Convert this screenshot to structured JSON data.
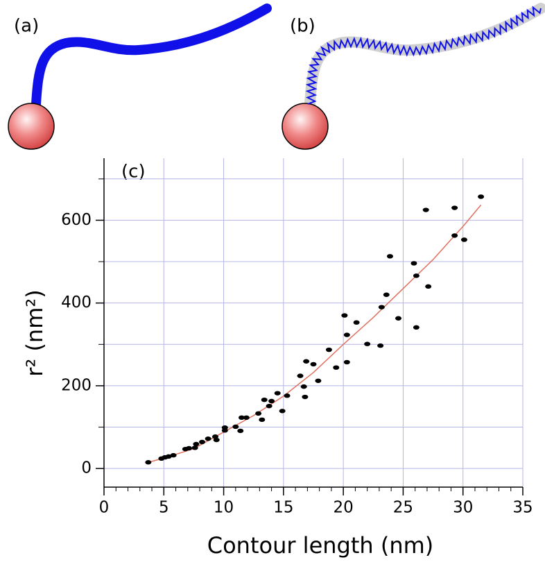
{
  "chart_data": {
    "type": "scatter",
    "panel_labels": [
      "(a)",
      "(b)",
      "(c)"
    ],
    "xlabel": "Contour length (nm)",
    "ylabel": "r² (nm²)",
    "xlim": [
      0,
      35
    ],
    "ylim": [
      -45,
      750
    ],
    "xticks": [
      0,
      5,
      10,
      15,
      20,
      25,
      30,
      35
    ],
    "yticks": [
      0,
      200,
      400,
      600
    ],
    "y_minor_ticks": [
      100,
      300,
      500,
      700
    ],
    "x_minor_step": 1,
    "grid": true,
    "grid_color": "#b4b4e6",
    "series": [
      {
        "color": "#000000",
        "x": [
          3.7,
          4.8,
          5.1,
          5.4,
          5.8,
          6.8,
          7.1,
          7.6,
          7.7,
          8.2,
          8.7,
          9.3,
          9.4,
          10.1,
          10.1,
          11.0,
          11.4,
          11.5,
          11.9,
          12.9,
          13.2,
          13.4,
          13.8,
          14.0,
          14.5,
          14.9,
          15.3,
          16.4,
          16.7,
          16.8,
          16.9,
          17.5,
          17.9,
          18.8,
          19.4,
          20.1,
          20.3,
          20.3,
          21.1,
          22.0,
          23.1,
          23.2,
          23.6,
          23.9,
          24.6,
          25.9,
          26.1,
          26.1,
          26.9,
          27.1,
          29.3,
          29.3,
          30.1,
          31.5
        ],
        "values": [
          15,
          24,
          27,
          29,
          32,
          47,
          49,
          50,
          59,
          64,
          72,
          77,
          69,
          99,
          92,
          101,
          91,
          123,
          123,
          133,
          118,
          166,
          151,
          163,
          182,
          139,
          176,
          224,
          198,
          173,
          259,
          252,
          212,
          287,
          244,
          370,
          323,
          257,
          353,
          301,
          297,
          390,
          420,
          513,
          363,
          496,
          466,
          341,
          625,
          440,
          630,
          563,
          553,
          657
        ]
      }
    ],
    "fit": {
      "color": "#e07060",
      "x": [
        3.7,
        5,
        7.5,
        10,
        12.5,
        15,
        17.5,
        20,
        22.5,
        25,
        27.5,
        29.3,
        30,
        31.5
      ],
      "values": [
        15,
        25,
        48,
        88,
        128,
        175,
        232,
        300,
        365,
        435,
        505,
        563,
        585,
        637
      ]
    }
  }
}
